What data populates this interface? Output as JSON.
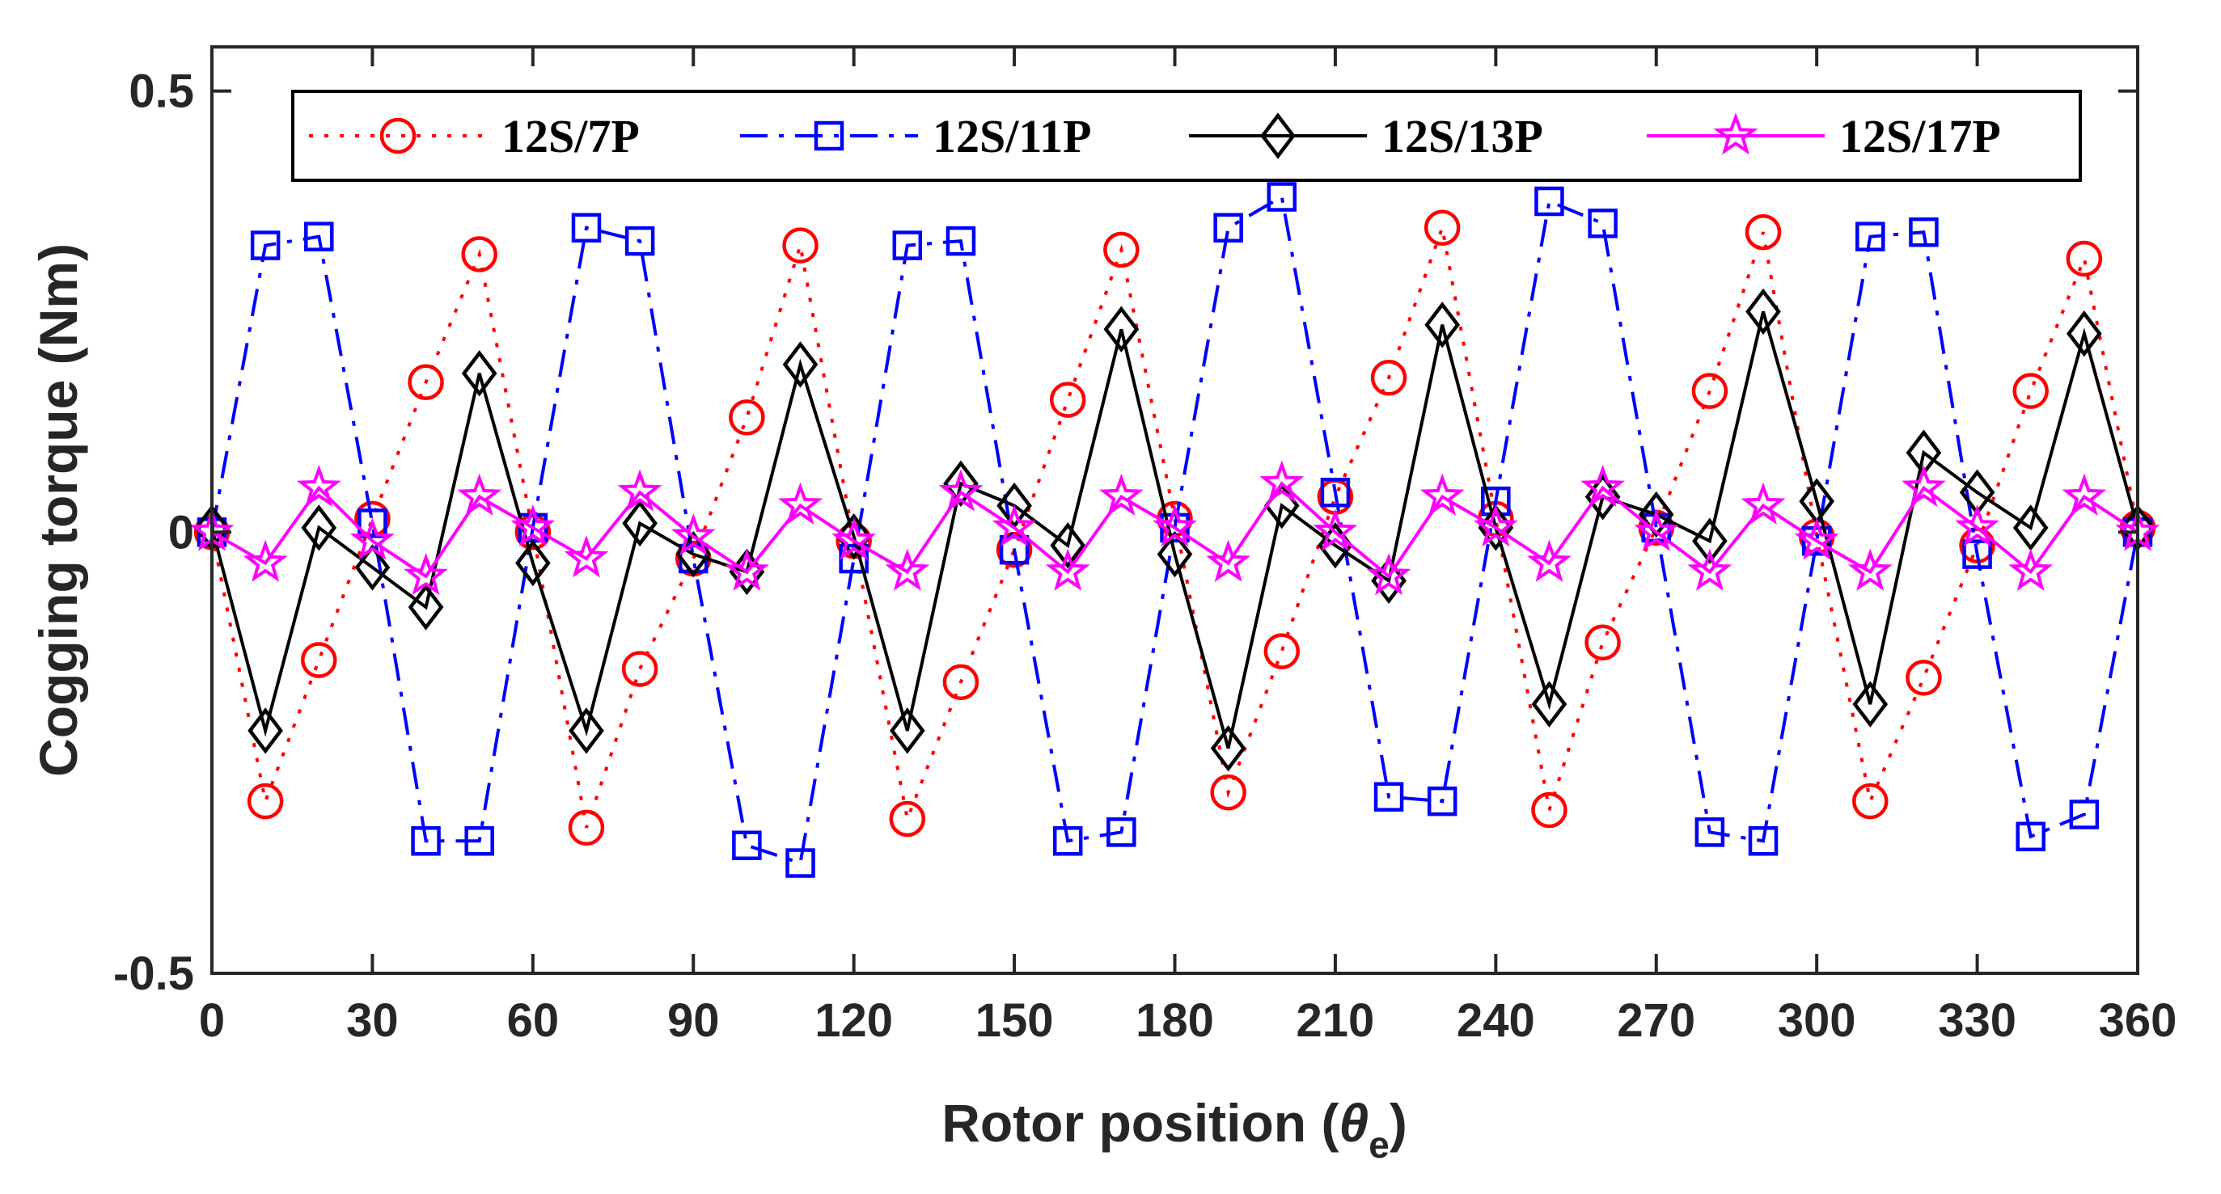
{
  "chart_data": {
    "type": "line",
    "title": "",
    "xlabel": "Rotor position (",
    "xlabel_symbol": "θ",
    "xlabel_subscript": "e",
    "xlabel_close": ")",
    "ylabel": "Cogging torque (Nm)",
    "xlim": [
      0,
      360
    ],
    "ylim": [
      -0.5,
      0.5
    ],
    "xticks": [
      "0",
      "30",
      "60",
      "90",
      "120",
      "150",
      "180",
      "210",
      "240",
      "270",
      "300",
      "330",
      "360"
    ],
    "yticks": [
      "0.5",
      "0",
      "-0.5"
    ],
    "grid": false,
    "legend_position": "top",
    "x": [
      0,
      10,
      20,
      30,
      40,
      50,
      60,
      70,
      80,
      90,
      100,
      110,
      120,
      130,
      140,
      150,
      160,
      170,
      180,
      190,
      200,
      210,
      220,
      230,
      240,
      250,
      260,
      270,
      280,
      290,
      300,
      310,
      320,
      330,
      340,
      350,
      360
    ],
    "series": [
      {
        "name": "12S/7P",
        "color": "#ff0000",
        "line_style": "dotted",
        "marker": "circle",
        "values": [
          0.0,
          -0.305,
          -0.145,
          0.015,
          0.17,
          0.315,
          0.0,
          -0.335,
          -0.155,
          -0.03,
          0.13,
          0.325,
          -0.01,
          -0.325,
          -0.17,
          -0.02,
          0.15,
          0.32,
          0.015,
          -0.295,
          -0.135,
          0.04,
          0.175,
          0.345,
          0.015,
          -0.315,
          -0.125,
          0.005,
          0.16,
          0.34,
          -0.005,
          -0.305,
          -0.165,
          -0.015,
          0.16,
          0.31,
          0.005
        ]
      },
      {
        "name": "12S/11P",
        "color": "#0000ff",
        "line_style": "dashdot",
        "marker": "square",
        "values": [
          0.0,
          0.325,
          0.335,
          0.01,
          -0.35,
          -0.35,
          0.005,
          0.345,
          0.33,
          -0.03,
          -0.355,
          -0.375,
          -0.03,
          0.325,
          0.33,
          -0.02,
          -0.35,
          -0.34,
          0.005,
          0.345,
          0.38,
          0.045,
          -0.3,
          -0.305,
          0.035,
          0.375,
          0.35,
          0.005,
          -0.34,
          -0.35,
          -0.01,
          0.335,
          0.34,
          -0.025,
          -0.345,
          -0.32,
          0.0
        ]
      },
      {
        "name": "12S/13P",
        "color": "#000000",
        "line_style": "solid",
        "marker": "diamond",
        "values": [
          0.005,
          -0.225,
          0.005,
          -0.04,
          -0.085,
          0.18,
          -0.035,
          -0.225,
          0.01,
          -0.025,
          -0.045,
          0.19,
          -0.005,
          -0.225,
          0.055,
          0.03,
          -0.015,
          0.23,
          -0.025,
          -0.245,
          0.03,
          -0.015,
          -0.055,
          0.235,
          0.005,
          -0.195,
          0.04,
          0.02,
          -0.01,
          0.25,
          0.035,
          -0.195,
          0.09,
          0.045,
          0.005,
          0.225,
          0.005
        ]
      },
      {
        "name": "12S/17P",
        "color": "#ff00ff",
        "line_style": "solid",
        "marker": "star",
        "values": [
          0.0,
          -0.035,
          0.05,
          -0.01,
          -0.05,
          0.04,
          0.005,
          -0.03,
          0.045,
          -0.005,
          -0.045,
          0.03,
          -0.01,
          -0.045,
          0.045,
          0.005,
          -0.045,
          0.04,
          0.005,
          -0.035,
          0.055,
          0.0,
          -0.05,
          0.04,
          0.005,
          -0.035,
          0.05,
          0.0,
          -0.045,
          0.03,
          -0.01,
          -0.045,
          0.05,
          0.005,
          -0.045,
          0.04,
          0.0
        ]
      }
    ]
  }
}
